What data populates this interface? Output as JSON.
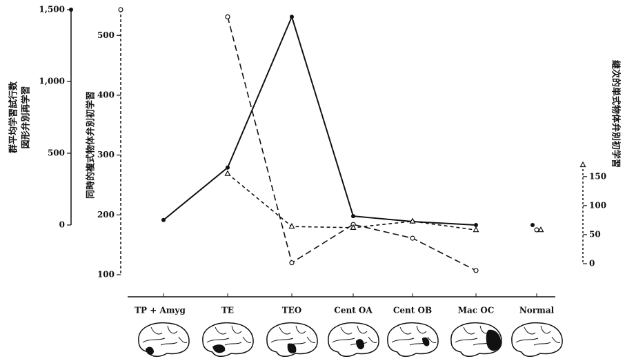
{
  "chart_data": {
    "type": "line",
    "categories": [
      "TP + Amyg",
      "TE",
      "TEO",
      "Cent OA",
      "Cent OB",
      "Mac OC",
      "Normal"
    ],
    "ylabel": [
      "群平均学習試行数",
      "図形弁別再学習"
    ],
    "y2label": "同時的複式物体弁別初学習",
    "y3label": "継次的単式物体弁別初学習",
    "ylim": [
      0,
      1500
    ],
    "yticks": [
      0,
      500,
      {
        "value": 1000,
        "label": "1,000"
      },
      {
        "value": 1500,
        "label": "1,500"
      }
    ],
    "y2lim": [
      100,
      543
    ],
    "y2ticks": [
      100,
      200,
      300,
      400,
      500
    ],
    "y3lim": [
      0,
      170
    ],
    "y3ticks": [
      0,
      50,
      100,
      150
    ],
    "connect_to_last": false,
    "series": [
      {
        "axis": "y",
        "marker": "filled-circle",
        "dash": "solid",
        "color": "#111",
        "values": [
          35,
          400,
          1450,
          62,
          24,
          0,
          0
        ]
      },
      {
        "axis": "y2",
        "marker": "open-circle",
        "dash": "long-dash",
        "color": "#111",
        "values": [
          null,
          531,
          120,
          184,
          161,
          107,
          175
        ]
      },
      {
        "axis": "y3",
        "marker": "triangle",
        "dash": "short-dash",
        "color": "#111",
        "values": [
          null,
          155,
          64,
          62,
          73,
          58,
          58
        ]
      }
    ]
  }
}
